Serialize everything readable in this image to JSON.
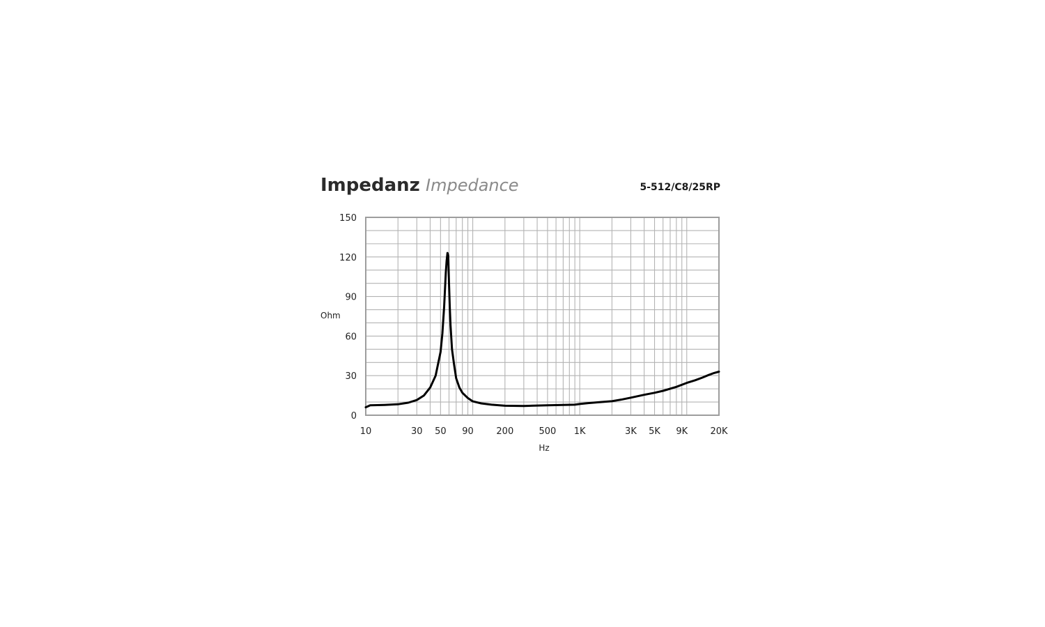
{
  "header": {
    "title_de": "Impedanz",
    "title_en": "Impedance",
    "model": "5-512/C8/25RP"
  },
  "chart_data": {
    "type": "line",
    "xscale": "log",
    "xlim": [
      10,
      20000
    ],
    "ylim": [
      0,
      150
    ],
    "xlabel": "Hz",
    "ylabel": "Ohm",
    "grid": true,
    "y_grid_step": 10,
    "x_ticks": [
      {
        "value": 10,
        "label": "10"
      },
      {
        "value": 30,
        "label": "30"
      },
      {
        "value": 50,
        "label": "50"
      },
      {
        "value": 90,
        "label": "90"
      },
      {
        "value": 200,
        "label": "200"
      },
      {
        "value": 500,
        "label": "500"
      },
      {
        "value": 1000,
        "label": "1K"
      },
      {
        "value": 3000,
        "label": "3K"
      },
      {
        "value": 5000,
        "label": "5K"
      },
      {
        "value": 9000,
        "label": "9K"
      },
      {
        "value": 20000,
        "label": "20K"
      }
    ],
    "y_ticks": [
      {
        "value": 0,
        "label": "0"
      },
      {
        "value": 30,
        "label": "30"
      },
      {
        "value": 60,
        "label": "60"
      },
      {
        "value": 90,
        "label": "90"
      },
      {
        "value": 120,
        "label": "120"
      },
      {
        "value": 150,
        "label": "150"
      }
    ],
    "series": [
      {
        "x": [
          10,
          11,
          15,
          20,
          25,
          30,
          35,
          40,
          45,
          50,
          52,
          54,
          56,
          57,
          58,
          59,
          60,
          61,
          62,
          64,
          67,
          70,
          75,
          80,
          90,
          100,
          120,
          150,
          200,
          300,
          500,
          700,
          900,
          1000,
          1200,
          1500,
          2000,
          2500,
          3000,
          4000,
          5000,
          6000,
          8000,
          10000,
          12000,
          14000,
          16000,
          18000,
          20000
        ],
        "y": [
          6,
          7.5,
          7.8,
          8.3,
          9.5,
          11.5,
          15,
          21,
          30,
          48,
          62,
          82,
          108,
          117,
          123,
          121,
          100,
          82,
          68,
          50,
          38,
          28,
          21,
          17,
          13,
          10.5,
          9,
          8,
          7.2,
          7,
          7.5,
          7.8,
          8,
          8.5,
          9.2,
          9.8,
          10.6,
          12,
          13.3,
          15.5,
          17,
          18.5,
          21.5,
          24.5,
          26.5,
          28.5,
          30.5,
          32,
          33
        ]
      }
    ]
  }
}
